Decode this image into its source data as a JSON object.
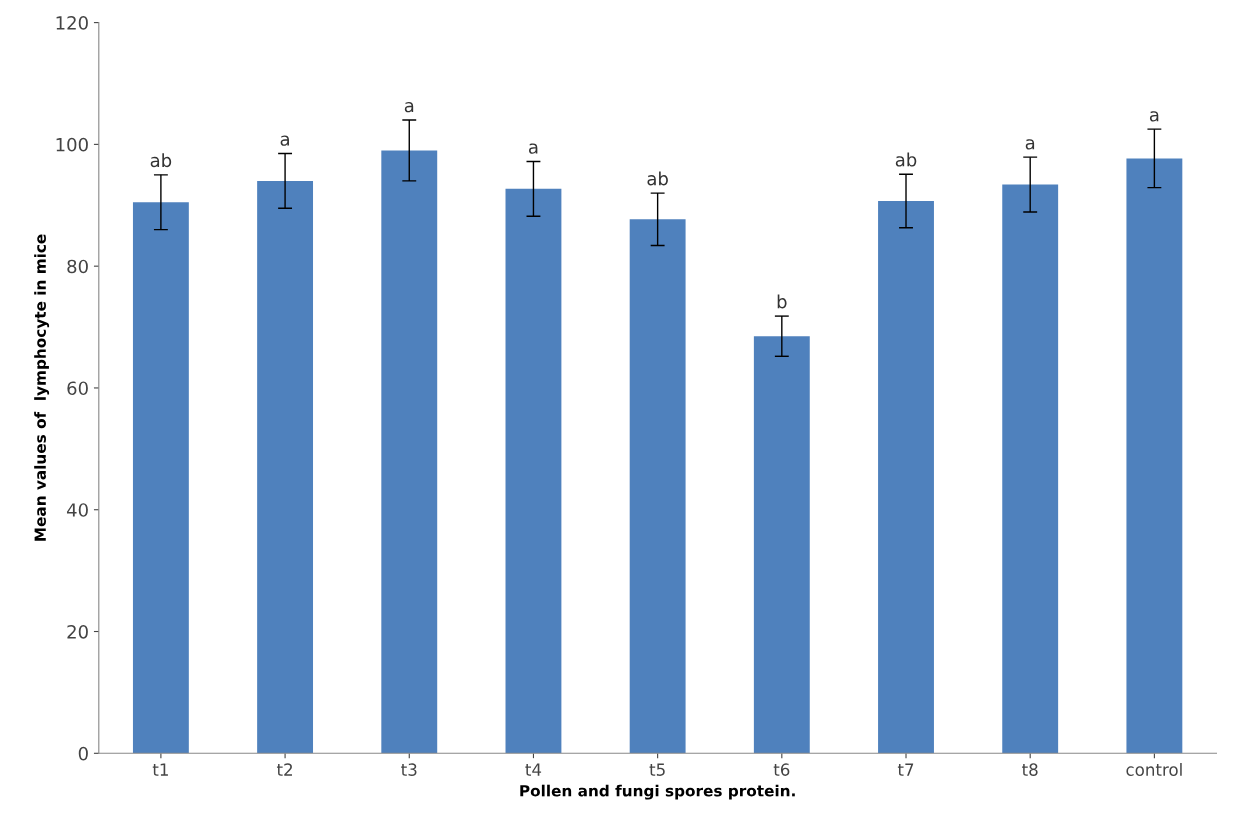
{
  "chart_data": {
    "type": "bar",
    "xlabel": "Pollen and fungi spores protein.",
    "ylabel": "Mean values of  lymphocyte in mice",
    "categories": [
      "t1",
      "t2",
      "t3",
      "t4",
      "t5",
      "t6",
      "t7",
      "t8",
      "control"
    ],
    "values": [
      90.5,
      94,
      99,
      92.7,
      87.7,
      68.5,
      90.7,
      93.4,
      97.7
    ],
    "errors": [
      4.5,
      4.5,
      5,
      4.5,
      4.3,
      3.3,
      4.4,
      4.5,
      4.8
    ],
    "color": "#4f81bd",
    "ylim": [
      0,
      120
    ],
    "yticks": [
      0,
      20,
      40,
      60,
      80,
      100,
      120
    ],
    "grid": false,
    "annotations": [
      {
        "text": "ab",
        "x": "t1",
        "y": 95
      },
      {
        "text": "a",
        "x": "t2",
        "y": 98.5
      },
      {
        "text": "a",
        "x": "t3",
        "y": 104
      },
      {
        "text": "a",
        "x": "t4",
        "y": 97.2
      },
      {
        "text": "ab",
        "x": "t5",
        "y": 92
      },
      {
        "text": "b",
        "x": "t6",
        "y": 71.8
      },
      {
        "text": "ab",
        "x": "t7",
        "y": 95.1
      },
      {
        "text": "a",
        "x": "t8",
        "y": 97.9
      },
      {
        "text": "a",
        "x": "control",
        "y": 102.5
      }
    ]
  }
}
